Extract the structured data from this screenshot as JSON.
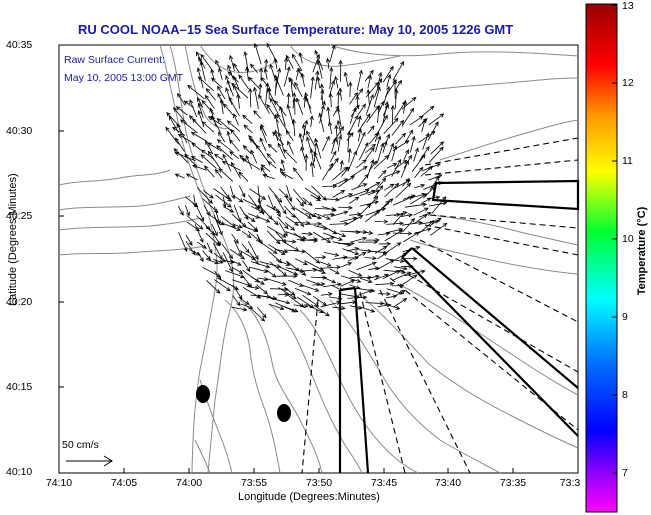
{
  "title": "RU COOL  NOAA–15  Sea Surface Temperature:  May 10, 2005 1226 GMT",
  "current": {
    "line1": "Raw Surface Current:",
    "line2": "May 10, 2005 13:00 GMT"
  },
  "axes": {
    "xlabel": "Longitude (Degrees:Minutes)",
    "ylabel": "Latitude (Degrees:Minutes)",
    "x_ticks": [
      "74:10",
      "74:05",
      "74:00",
      "73:55",
      "73:50",
      "73:45",
      "73:40",
      "73:35",
      "73:3"
    ],
    "y_ticks": [
      "40:35",
      "40:30",
      "40:25",
      "40:20",
      "40:15",
      "40:10"
    ]
  },
  "colorbar": {
    "title": "Temperature (°C)",
    "ticks": [
      "13",
      "12",
      "11",
      "10",
      "9",
      "8",
      "7"
    ],
    "range": [
      6.5,
      13
    ]
  },
  "scale_arrow": {
    "label": "50 cm/s"
  },
  "colors": {
    "title_text": "#1a1aa6",
    "land_contour": "#8a8a8a",
    "vectors": "#000000"
  }
}
